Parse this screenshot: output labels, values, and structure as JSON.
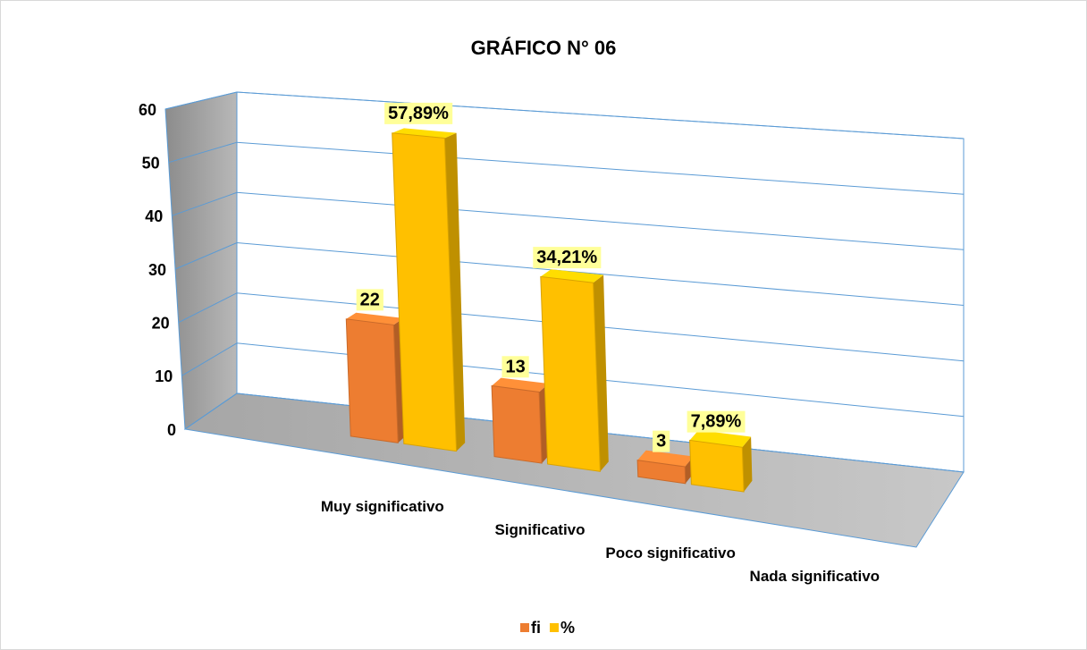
{
  "chart_data": {
    "type": "bar3d",
    "title": "GRÁFICO N° 06",
    "categories": [
      "Muy significativo",
      "Significativo",
      "Poco significativo",
      "Nada significativo"
    ],
    "series": [
      {
        "name": "fi",
        "color": "#ed7d31",
        "values": [
          22,
          13,
          3,
          null
        ]
      },
      {
        "name": "%",
        "color": "#ffc000",
        "values": [
          57.89,
          34.21,
          7.89,
          null
        ],
        "value_labels": [
          "57,89%",
          "34,21%",
          "7,89%",
          null
        ]
      }
    ],
    "ylim": [
      0,
      60
    ],
    "yticks": [
      0,
      10,
      20,
      30,
      40,
      50,
      60
    ],
    "grid": true,
    "legend": "bottom"
  }
}
